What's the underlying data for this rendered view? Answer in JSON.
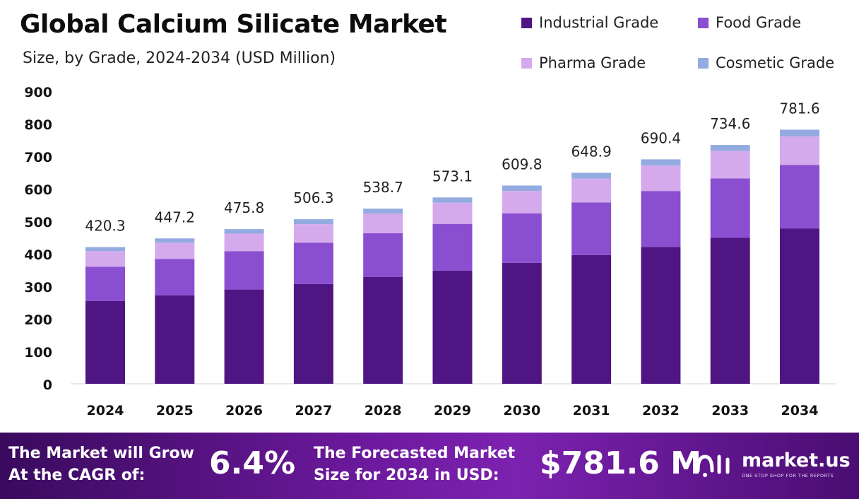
{
  "header": {
    "title": "Global Calcium Silicate Market",
    "subtitle": "Size, by Grade, 2024-2034 (USD Million)"
  },
  "legend": [
    {
      "label": "Industrial Grade",
      "color": "#4f1683"
    },
    {
      "label": "Food Grade",
      "color": "#8a4fd0"
    },
    {
      "label": "Pharma Grade",
      "color": "#d5aaed"
    },
    {
      "label": "Cosmetic Grade",
      "color": "#93abe0"
    }
  ],
  "chart_data": {
    "type": "bar",
    "stacked": true,
    "categories": [
      "2024",
      "2025",
      "2026",
      "2027",
      "2028",
      "2029",
      "2030",
      "2031",
      "2032",
      "2033",
      "2034"
    ],
    "series": [
      {
        "name": "Industrial Grade",
        "color": "#4f1683",
        "values": [
          255,
          272,
          290,
          307,
          329,
          348,
          372,
          396,
          421,
          449,
          478
        ]
      },
      {
        "name": "Food Grade",
        "color": "#8a4fd0",
        "values": [
          105,
          112,
          118,
          127,
          134,
          144,
          152,
          162,
          172,
          183,
          195
        ]
      },
      {
        "name": "Pharma Grade",
        "color": "#d5aaed",
        "values": [
          48,
          50,
          54,
          57,
          60,
          65,
          69,
          73,
          78,
          84,
          88
        ]
      },
      {
        "name": "Cosmetic Grade",
        "color": "#93abe0",
        "values": [
          12.3,
          13.2,
          13.8,
          15.3,
          15.7,
          16.1,
          16.8,
          17.9,
          19.4,
          18.6,
          20.6
        ]
      }
    ],
    "totals": [
      "420.3",
      "447.2",
      "475.8",
      "506.3",
      "538.7",
      "573.1",
      "609.8",
      "648.9",
      "690.4",
      "734.6",
      "781.6"
    ],
    "yticks": [
      "0",
      "100",
      "200",
      "300",
      "400",
      "500",
      "600",
      "700",
      "800",
      "900"
    ],
    "ylim": [
      0,
      900
    ],
    "grid": false,
    "legend_position": "top-right"
  },
  "footer": {
    "cagr_label_line1": "The Market will Grow",
    "cagr_label_line2": "At the CAGR of:",
    "cagr_value": "6.4%",
    "forecast_label_line1": "The Forecasted Market",
    "forecast_label_line2": "Size for 2034 in USD:",
    "forecast_value": "$781.6 M",
    "brand_name": "market.us",
    "brand_tagline": "ONE STOP SHOP FOR THE REPORTS"
  }
}
